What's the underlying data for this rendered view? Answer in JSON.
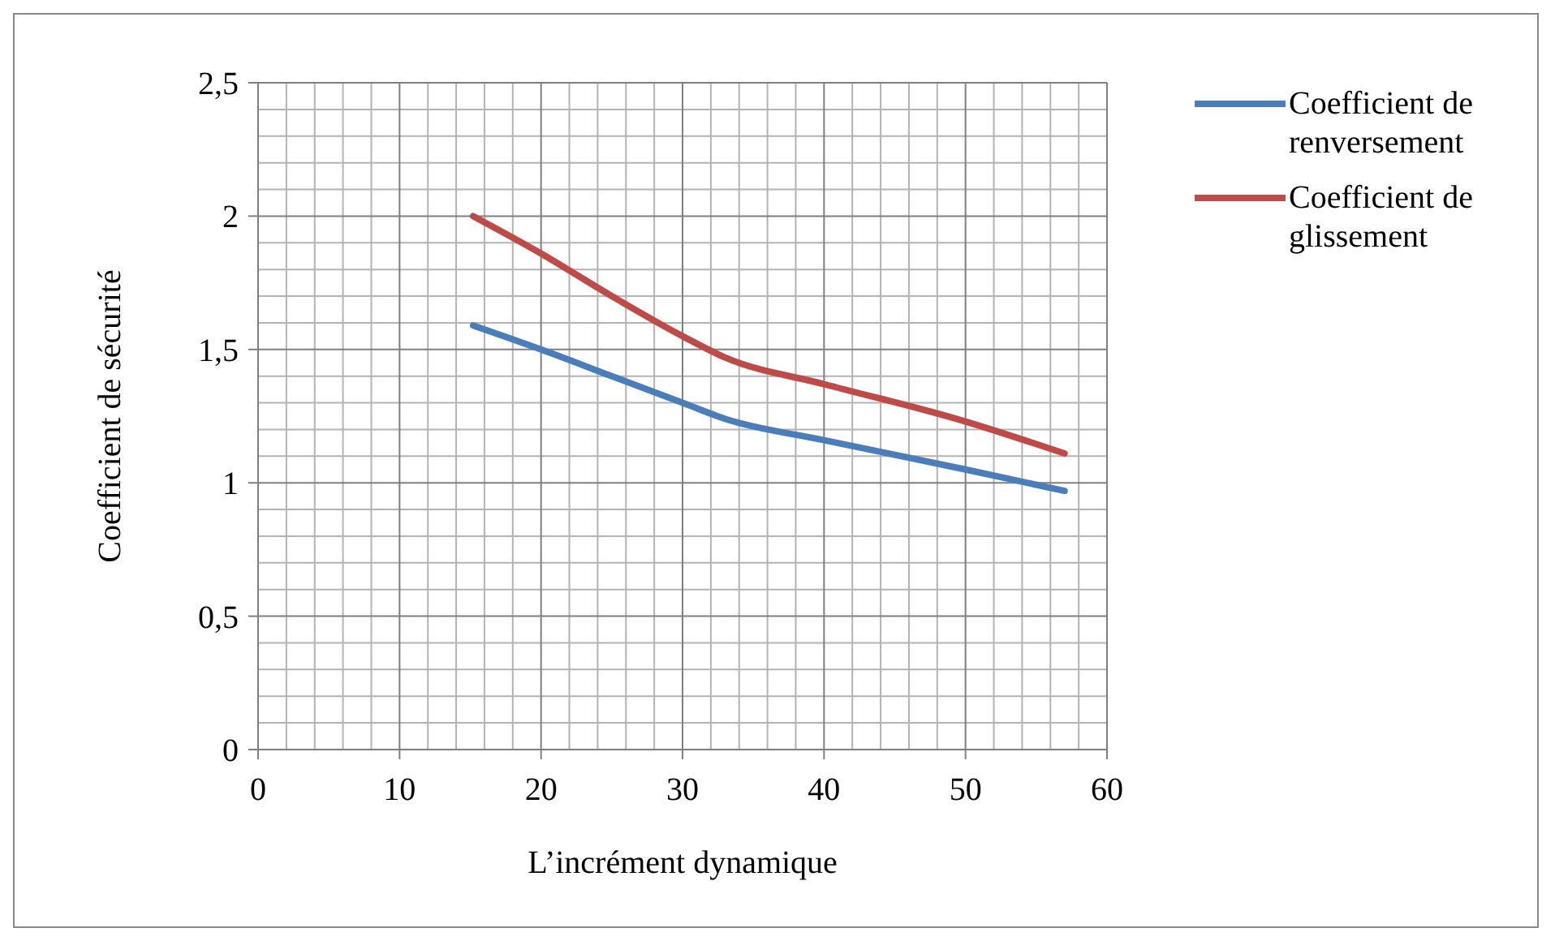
{
  "chart_data": {
    "type": "line",
    "xlabel": "L’incrément dynamique",
    "ylabel": "Coefficient de sécurité",
    "x": [
      15.2,
      20,
      25,
      30,
      33,
      40,
      50,
      57
    ],
    "series": [
      {
        "name": "Coefficient de renversement",
        "color": "#4a7ebb",
        "values": [
          1.59,
          1.5,
          1.4,
          1.3,
          1.24,
          1.16,
          1.05,
          0.97
        ]
      },
      {
        "name": "Coefficient de glissement",
        "color": "#be4b48",
        "values": [
          2.0,
          1.86,
          1.7,
          1.55,
          1.47,
          1.37,
          1.23,
          1.11
        ]
      }
    ],
    "xlim": [
      0,
      60
    ],
    "xticks": [
      0,
      10,
      20,
      30,
      40,
      50,
      60
    ],
    "ylim": [
      0,
      2.5
    ],
    "yticks": [
      {
        "value": 0,
        "label": "0"
      },
      {
        "value": 0.5,
        "label": "0,5"
      },
      {
        "value": 1,
        "label": "1"
      },
      {
        "value": 1.5,
        "label": "1,5"
      },
      {
        "value": 2,
        "label": "2"
      },
      {
        "value": 2.5,
        "label": "2,5"
      }
    ],
    "grid": true,
    "legend": "right",
    "marker": "none",
    "line_style": "solid"
  }
}
